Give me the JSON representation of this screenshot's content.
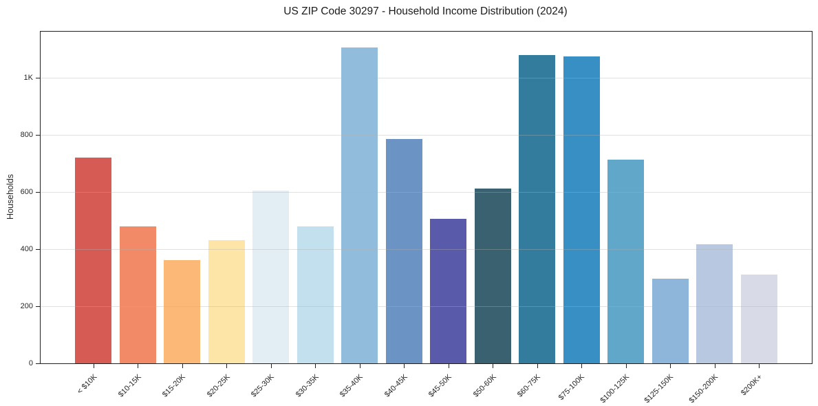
{
  "chart_data": {
    "type": "bar",
    "title": "US ZIP Code 30297 - Household Income Distribution (2024)",
    "xlabel": "",
    "ylabel": "Households",
    "categories": [
      "< $10K",
      "$10-15K",
      "$15-20K",
      "$20-25K",
      "$25-30K",
      "$30-35K",
      "$35-40K",
      "$40-45K",
      "$45-50K",
      "$50-60K",
      "$60-75K",
      "$75-100K",
      "$100-125K",
      "$125-150K",
      "$150-200K",
      "$200K+"
    ],
    "values": [
      720,
      480,
      362,
      431,
      605,
      480,
      1107,
      786,
      506,
      612,
      1079,
      1076,
      714,
      297,
      416,
      312
    ],
    "bar_colors": [
      "#d65b54",
      "#f28967",
      "#fbb876",
      "#fde5a7",
      "#e3eef4",
      "#c2e0ee",
      "#92bcdc",
      "#6b93c4",
      "#5a5aaa",
      "#3a616f",
      "#347c9e",
      "#388fc3",
      "#60a7ca",
      "#8db6da",
      "#b7c8e0",
      "#d8dae7"
    ],
    "ylim": [
      0,
      1162
    ],
    "yticks": [
      0,
      200,
      400,
      600,
      800,
      1000
    ],
    "ytick_labels": [
      "0",
      "200",
      "400",
      "600",
      "800",
      "1K"
    ],
    "grid": "horizontal-only",
    "grid_color": "#e8e8e8",
    "spine_color": "#1f1f1f",
    "legend": "none",
    "x_tick_rotation_deg": 45
  }
}
